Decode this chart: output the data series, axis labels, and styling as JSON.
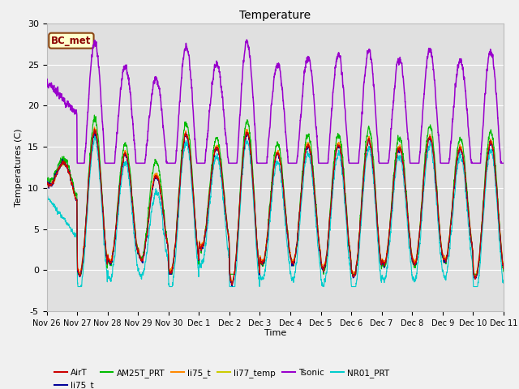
{
  "title": "Temperature",
  "ylabel": "Temperatures (C)",
  "xlabel": "Time",
  "annotation": "BC_met",
  "ylim": [
    -5,
    30
  ],
  "series_colors": {
    "AirT": "#cc0000",
    "li75_t": "#000099",
    "AM25T_PRT": "#00bb00",
    "li75_t2": "#ff8800",
    "li77_temp": "#cccc00",
    "Tsonic": "#9900cc",
    "NR01_PRT": "#00cccc"
  },
  "legend_names": [
    "AirT",
    "li75_t",
    "AM25T_PRT",
    "li75_t",
    "li77_temp",
    "Tsonic",
    "NR01_PRT"
  ],
  "fig_bg_color": "#f0f0f0",
  "plot_bg_color": "#e0e0e0",
  "tick_labels": [
    "Nov 26",
    "Nov 27",
    "Nov 28",
    "Nov 29",
    "Nov 30",
    "Dec 1",
    "Dec 2",
    "Dec 3",
    "Dec 4",
    "Dec 5",
    "Dec 6",
    "Dec 7",
    "Dec 8",
    "Dec 9",
    "Dec 10",
    "Dec 11"
  ],
  "n_days": 15,
  "pts_per_day": 288
}
